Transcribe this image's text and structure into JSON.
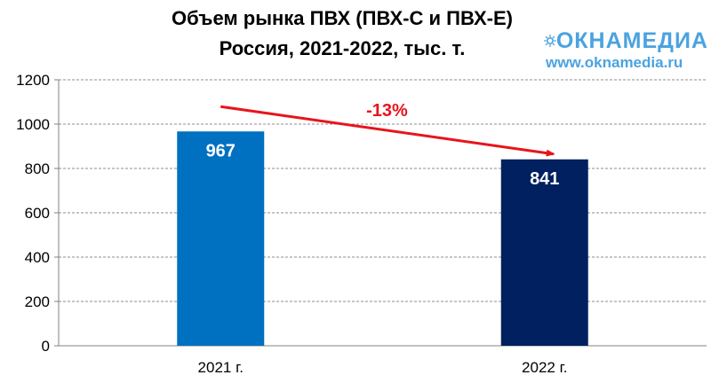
{
  "title_line1": "Объем рынка ПВХ (ПВХ-С и ПВХ-Е)",
  "title_line2": "Россия, 2021-2022, тыс. т.",
  "logo": {
    "brand": "ОКНАМЕДИА",
    "url": "www.oknamedia.ru",
    "brand_color": "#4aa3e0",
    "icon": "sun-icon"
  },
  "chart_data": {
    "type": "bar",
    "categories": [
      "2021 г.",
      "2022 г."
    ],
    "values": [
      967,
      841
    ],
    "data_labels": [
      "967",
      "841"
    ],
    "bar_colors": [
      "#0070c0",
      "#002060"
    ],
    "ylim": [
      0,
      1200
    ],
    "yticks": [
      "0",
      "200",
      "400",
      "600",
      "800",
      "1000",
      "1200"
    ],
    "grid": true,
    "annotation": {
      "text": "-13%",
      "color": "#e8141b",
      "type": "arrow from first bar to second bar"
    },
    "xlabel": "",
    "ylabel": ""
  }
}
